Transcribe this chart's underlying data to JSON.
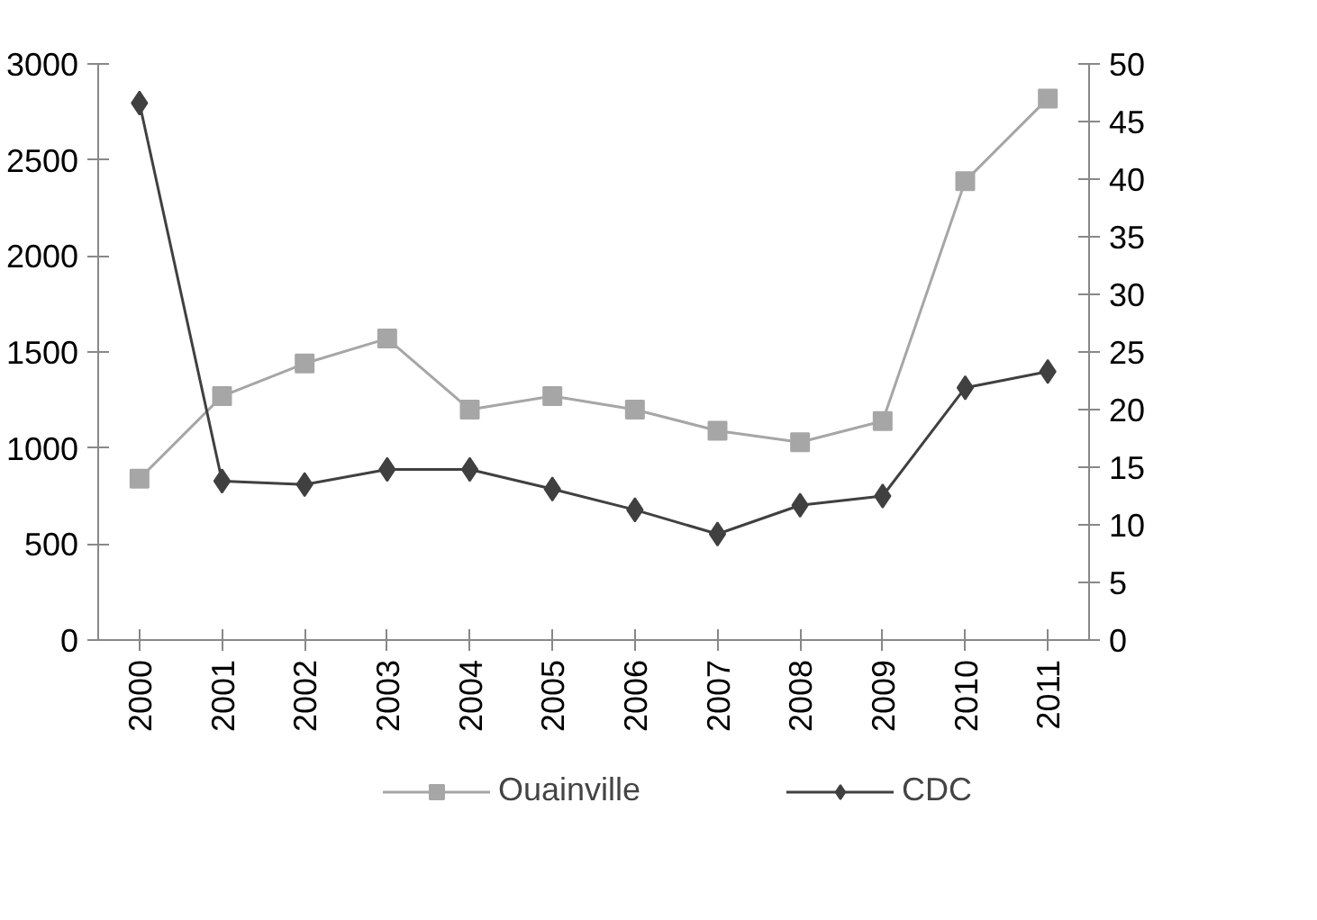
{
  "chart_data": {
    "type": "line",
    "categories": [
      "2000",
      "2001",
      "2002",
      "2003",
      "2004",
      "2005",
      "2006",
      "2007",
      "2008",
      "2009",
      "2010",
      "2011"
    ],
    "series": [
      {
        "name": "Ouainville",
        "color": "#a6a6a6",
        "marker": "square",
        "values": [
          840,
          1270,
          1440,
          1570,
          1200,
          1270,
          1200,
          1090,
          1030,
          1140,
          2390,
          2820
        ]
      },
      {
        "name": "CDC",
        "color": "#404040",
        "marker": "diamond",
        "axis": "y2",
        "values": [
          46.6,
          13.8,
          13.5,
          14.8,
          14.8,
          13.1,
          11.3,
          9.2,
          11.7,
          12.5,
          21.9,
          23.3
        ]
      }
    ],
    "ylim": [
      0,
      3000
    ],
    "yticks": [
      0,
      500,
      1000,
      1500,
      2000,
      2500,
      3000
    ],
    "y2lim": [
      0,
      50
    ],
    "y2ticks": [
      0,
      5,
      10,
      15,
      20,
      25,
      30,
      35,
      40,
      45,
      50
    ],
    "grid": false,
    "legend": "bottom",
    "line_style": "solid"
  }
}
